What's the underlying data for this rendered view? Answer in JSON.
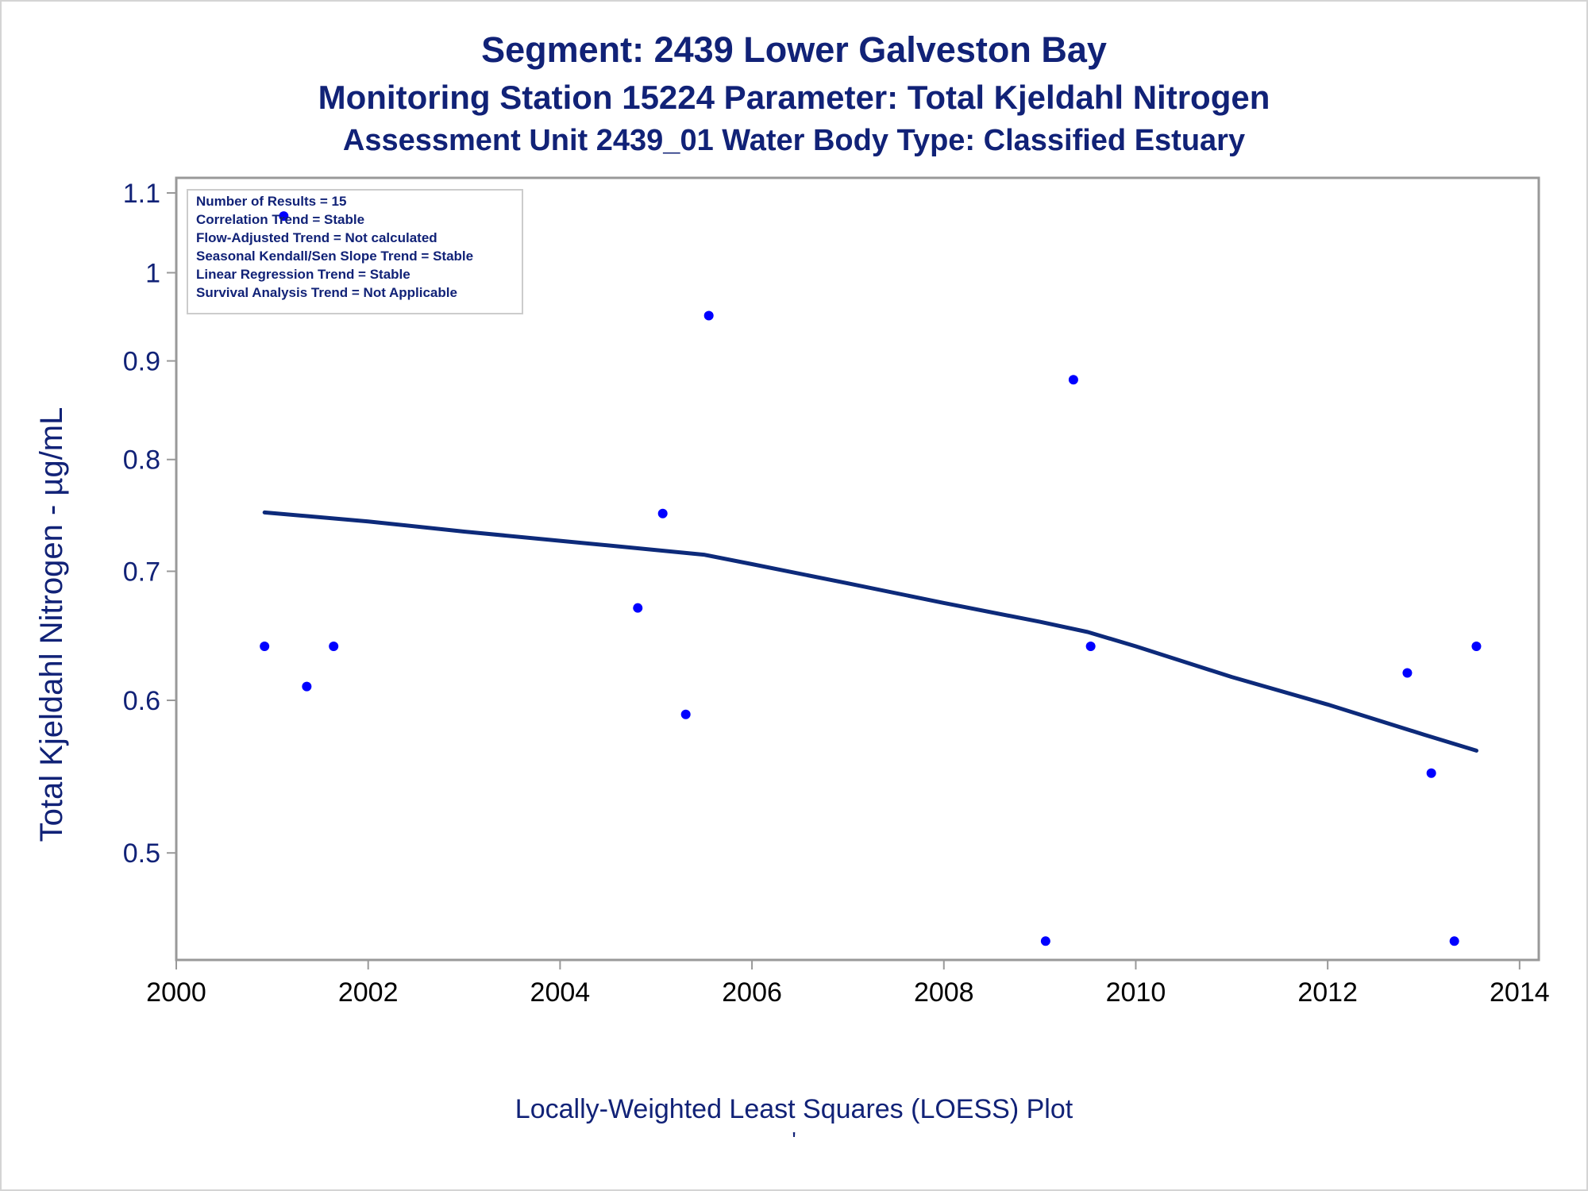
{
  "titles": {
    "line1": "Segment: 2439  Lower Galveston Bay",
    "line2": "Monitoring Station 15224 Parameter: Total Kjeldahl Nitrogen",
    "line3": "Assessment Unit 2439_01   Water Body Type: Classified Estuary"
  },
  "footnote": "Locally-Weighted Least Squares (LOESS) Plot",
  "footnote_mark": "'",
  "stats_box": [
    "Number of Results = 15",
    "Correlation Trend = Stable",
    "Flow-Adjusted Trend = Not calculated",
    "Seasonal Kendall/Sen Slope Trend = Stable",
    "Linear Regression Trend = Stable",
    "Survival Analysis Trend = Not Applicable"
  ],
  "colors": {
    "title": "#112277",
    "points": "#0000ff",
    "loess": "#0d2a7a",
    "axis": "#999999"
  },
  "chart_data": {
    "type": "scatter",
    "title": "Segment: 2439  Lower Galveston Bay",
    "xlabel": "",
    "ylabel": "Total Kjeldahl Nitrogen -  µg/mL",
    "x_scale": "date",
    "y_scale": "log",
    "xlim": [
      2000,
      2014.2
    ],
    "ylim": [
      0.44,
      1.12
    ],
    "xticks": [
      2000,
      2002,
      2004,
      2006,
      2008,
      2010,
      2012,
      2014
    ],
    "yticks": [
      0.5,
      0.6,
      0.7,
      0.8,
      0.9,
      1,
      1.1
    ],
    "ytick_labels": [
      "0.5",
      "0.6",
      "0.7",
      "0.8",
      "0.9",
      "1",
      "1.1"
    ],
    "grid": false,
    "points": [
      {
        "x": 2000.92,
        "y": 0.64
      },
      {
        "x": 2001.12,
        "y": 1.07
      },
      {
        "x": 2001.36,
        "y": 0.61
      },
      {
        "x": 2001.64,
        "y": 0.64
      },
      {
        "x": 2004.81,
        "y": 0.67
      },
      {
        "x": 2005.07,
        "y": 0.75
      },
      {
        "x": 2005.31,
        "y": 0.59
      },
      {
        "x": 2005.55,
        "y": 0.95
      },
      {
        "x": 2009.06,
        "y": 0.45
      },
      {
        "x": 2009.35,
        "y": 0.88
      },
      {
        "x": 2009.53,
        "y": 0.64
      },
      {
        "x": 2012.83,
        "y": 0.62
      },
      {
        "x": 2013.08,
        "y": 0.55
      },
      {
        "x": 2013.32,
        "y": 0.45
      },
      {
        "x": 2013.55,
        "y": 0.64
      }
    ],
    "loess": {
      "x": [
        2000.92,
        2002,
        2003,
        2004,
        2005,
        2005.5,
        2006,
        2007,
        2008,
        2009,
        2009.5,
        2010,
        2011,
        2012,
        2013,
        2013.55
      ],
      "y": [
        0.751,
        0.743,
        0.734,
        0.726,
        0.718,
        0.714,
        0.706,
        0.69,
        0.674,
        0.659,
        0.651,
        0.64,
        0.617,
        0.597,
        0.576,
        0.565
      ]
    }
  }
}
